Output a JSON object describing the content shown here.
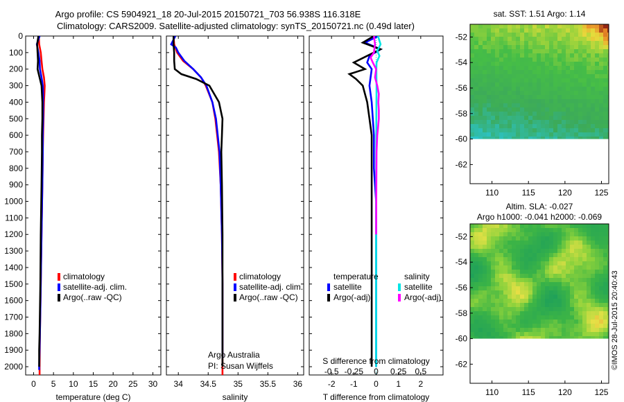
{
  "header": {
    "title_line1": "Argo profile: CS 5904921_18 20-Jul-2015 20150721_703 56.938S 116.318E",
    "title_line2": "Climatology: CARS2009. Satellite-adjusted climatology: synTS_20150721.nc (0.49d later)"
  },
  "colors": {
    "climatology": "#ff0000",
    "satellite_adj": "#0000ff",
    "argo": "#000000",
    "salinity_sat": "#00e5e5",
    "salinity_argo": "#ff00ff"
  },
  "chart_data": [
    {
      "id": "temperature",
      "type": "line",
      "xlabel": "temperature (deg C)",
      "ylabel": "",
      "xlim": [
        -2,
        32
      ],
      "xticks": [
        0,
        5,
        10,
        15,
        20,
        25,
        30
      ],
      "ylim": [
        2050,
        0
      ],
      "yticks": [
        0,
        100,
        200,
        300,
        400,
        500,
        600,
        700,
        800,
        900,
        1000,
        1100,
        1200,
        1300,
        1400,
        1500,
        1600,
        1700,
        1800,
        1900,
        2000
      ],
      "legend": [
        "climatology",
        "satellite-adj. clim.",
        "Argo(..raw -QC)"
      ],
      "legend_position": "lower-middle",
      "series": [
        {
          "name": "climatology",
          "color": "#ff0000",
          "depth": [
            0,
            50,
            100,
            150,
            200,
            250,
            300,
            350,
            400,
            500,
            600,
            700,
            900,
            1200,
            1500,
            1800,
            2000,
            2050
          ],
          "values": [
            1.3,
            1.4,
            1.8,
            2.0,
            2.2,
            2.6,
            2.8,
            2.7,
            2.6,
            2.5,
            2.4,
            2.3,
            2.2,
            2.0,
            1.8,
            1.6,
            1.5,
            1.5
          ]
        },
        {
          "name": "satellite-adj. clim.",
          "color": "#0000ff",
          "depth": [
            0,
            50,
            100,
            150,
            200,
            250,
            300,
            350,
            400,
            500,
            600,
            700,
            900,
            1200,
            1500,
            1800,
            2000,
            2020
          ],
          "values": [
            1.5,
            0.8,
            1.2,
            1.5,
            1.6,
            2.0,
            2.3,
            2.4,
            2.4,
            2.4,
            2.3,
            2.3,
            2.2,
            2.0,
            1.8,
            1.6,
            1.4,
            1.4
          ]
        },
        {
          "name": "Argo(..raw -QC)",
          "color": "#000000",
          "depth": [
            0,
            50,
            100,
            150,
            200,
            230,
            260,
            300,
            350,
            400,
            500,
            600,
            700,
            900,
            1200,
            1500,
            1800,
            1900,
            2000
          ],
          "values": [
            1.2,
            0.9,
            1.0,
            1.1,
            1.0,
            1.3,
            1.6,
            2.0,
            2.1,
            2.2,
            2.2,
            2.1,
            2.1,
            2.0,
            1.8,
            1.7,
            1.5,
            1.4,
            1.4
          ]
        }
      ]
    },
    {
      "id": "salinity",
      "type": "line",
      "xlabel": "salinity",
      "ylabel": "",
      "xlim": [
        33.8,
        36.1
      ],
      "xticks": [
        34,
        34.5,
        35,
        35.5,
        36
      ],
      "ylim": [
        2050,
        0
      ],
      "legend": [
        "climatology",
        "satellite-adj. clim.",
        "Argo(..raw -QC)"
      ],
      "legend_position": "lower-right",
      "annotations": [
        "Argo Australia",
        "PI: Susan Wijffels"
      ],
      "series": [
        {
          "name": "climatology",
          "color": "#ff0000",
          "depth": [
            0,
            50,
            100,
            150,
            200,
            250,
            300,
            400,
            500,
            700,
            900,
            1200,
            1500,
            1800,
            2000,
            2050
          ],
          "values": [
            33.92,
            33.93,
            33.98,
            34.08,
            34.25,
            34.38,
            34.46,
            34.57,
            34.62,
            34.68,
            34.71,
            34.73,
            34.74,
            34.74,
            34.74,
            34.74
          ]
        },
        {
          "name": "satellite-adj. clim.",
          "color": "#0000ff",
          "depth": [
            0,
            50,
            70,
            100,
            150,
            200,
            250,
            300,
            400,
            500,
            700,
            900,
            1200,
            1500,
            1800,
            1950
          ],
          "values": [
            33.95,
            33.88,
            33.96,
            34.0,
            34.1,
            34.25,
            34.38,
            34.47,
            34.57,
            34.63,
            34.69,
            34.71,
            34.73,
            34.74,
            34.74,
            34.74
          ]
        },
        {
          "name": "Argo(..raw -QC)",
          "color": "#000000",
          "depth": [
            0,
            50,
            100,
            150,
            200,
            230,
            260,
            300,
            400,
            500,
            600,
            700,
            900,
            1200,
            1500,
            1800,
            2000
          ],
          "values": [
            33.92,
            33.92,
            33.93,
            33.93,
            33.94,
            34.05,
            34.3,
            34.52,
            34.68,
            34.74,
            34.73,
            34.72,
            34.73,
            34.74,
            34.74,
            34.74,
            34.74
          ]
        }
      ]
    },
    {
      "id": "difference",
      "type": "line",
      "xlabel": "T difference from climatology",
      "xlabel_top": "S difference from climatology",
      "ylabel": "",
      "xlim": [
        -3,
        3
      ],
      "xticks": [
        -2,
        -1,
        0,
        1,
        2
      ],
      "xticks_top": [
        -0.5,
        -0.25,
        0,
        0.25,
        0.5
      ],
      "ylim": [
        2050,
        0
      ],
      "legend_groups": [
        {
          "title": "temperature",
          "items": [
            "satellite",
            "Argo(-adj)"
          ]
        },
        {
          "title": "salinity",
          "items": [
            "satellite",
            "Argo(-adj)"
          ]
        }
      ],
      "series": [
        {
          "name": "temperature satellite",
          "color": "#0000ff",
          "depth": [
            0,
            40,
            80,
            120,
            160,
            200,
            300,
            400,
            600,
            800,
            1000,
            1500,
            2000
          ],
          "values": [
            0.1,
            -0.5,
            0.2,
            -0.3,
            -0.4,
            -0.2,
            -0.3,
            -0.2,
            -0.1,
            -0.1,
            0.0,
            0.0,
            0.0
          ]
        },
        {
          "name": "temperature Argo(-adj)",
          "color": "#000000",
          "depth": [
            0,
            40,
            80,
            120,
            160,
            200,
            230,
            260,
            300,
            400,
            500,
            600,
            800,
            1000,
            1200,
            1500,
            1800,
            2000
          ],
          "values": [
            -0.1,
            -0.6,
            0.2,
            -0.4,
            -1.0,
            -0.5,
            -1.2,
            -0.9,
            -0.6,
            -0.4,
            -0.3,
            -0.2,
            -0.2,
            -0.2,
            -0.2,
            -0.2,
            -0.2,
            -0.2
          ]
        },
        {
          "name": "salinity satellite",
          "color": "#00e5e5",
          "depth": [
            0,
            50,
            90,
            120,
            160,
            200,
            300,
            500,
            800,
            1200,
            1600,
            2000
          ],
          "values": [
            0.08,
            0.2,
            0.05,
            0.15,
            0.02,
            0.01,
            0.02,
            0.01,
            0.0,
            0.0,
            0.0,
            0.0
          ]
        },
        {
          "name": "salinity Argo(-adj)",
          "color": "#ff00ff",
          "depth": [
            0,
            50,
            100,
            130,
            160,
            200,
            250,
            300,
            350,
            400,
            450,
            500,
            560,
            600,
            700,
            900,
            1200
          ],
          "values": [
            -0.1,
            -0.05,
            -0.1,
            -0.25,
            -0.15,
            0.0,
            -0.05,
            0.05,
            0.12,
            0.1,
            0.12,
            0.12,
            0.08,
            0.05,
            0.02,
            0.01,
            0.0
          ]
        }
      ]
    },
    {
      "id": "sst-map",
      "type": "heatmap",
      "title": "sat. SST: 1.51  Argo: 1.14",
      "xlim": [
        107,
        126
      ],
      "xticks": [
        110,
        115,
        120,
        125
      ],
      "ylim": [
        -63.5,
        -51
      ],
      "yticks": [
        -52,
        -54,
        -56,
        -58,
        -60,
        -62
      ],
      "data_lat_min": -60
    },
    {
      "id": "sla-map",
      "type": "heatmap",
      "title": "Altim. SLA: -0.027",
      "subtitle": "Argo h1000: -0.041  h2000: -0.069",
      "xlim": [
        107,
        126
      ],
      "xticks": [
        110,
        115,
        120,
        125
      ],
      "ylim": [
        -63.5,
        -51
      ],
      "yticks": [
        -52,
        -54,
        -56,
        -58,
        -60,
        -62
      ],
      "data_lat_min": -60
    }
  ],
  "footer": {
    "credit": "©IMOS 28-Jul-2015 20:40:43"
  }
}
